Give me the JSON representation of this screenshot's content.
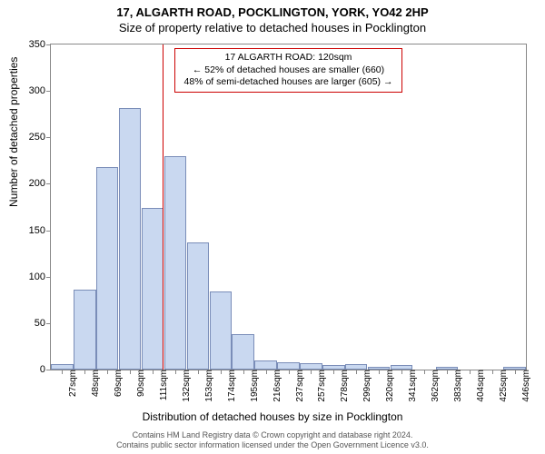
{
  "title": {
    "line1": "17, ALGARTH ROAD, POCKLINGTON, YORK, YO42 2HP",
    "line2": "Size of property relative to detached houses in Pocklington"
  },
  "chart": {
    "type": "histogram",
    "ylabel": "Number of detached properties",
    "xlabel": "Distribution of detached houses by size in Pocklington",
    "ylim": [
      0,
      350
    ],
    "ytick_step": 50,
    "bar_fill": "#c9d8f0",
    "bar_stroke": "#7a8db8",
    "border_color": "#888888",
    "marker_color": "#cc0000",
    "marker_x": 120,
    "x_start": 27,
    "x_step": 21,
    "x_unit": "sqm",
    "bars": [
      {
        "label": "27sqm",
        "value": 6
      },
      {
        "label": "48sqm",
        "value": 86
      },
      {
        "label": "69sqm",
        "value": 218
      },
      {
        "label": "90sqm",
        "value": 282
      },
      {
        "label": "111sqm",
        "value": 174
      },
      {
        "label": "132sqm",
        "value": 230
      },
      {
        "label": "153sqm",
        "value": 137
      },
      {
        "label": "174sqm",
        "value": 84
      },
      {
        "label": "195sqm",
        "value": 38
      },
      {
        "label": "216sqm",
        "value": 10
      },
      {
        "label": "237sqm",
        "value": 8
      },
      {
        "label": "257sqm",
        "value": 7
      },
      {
        "label": "278sqm",
        "value": 5
      },
      {
        "label": "299sqm",
        "value": 6
      },
      {
        "label": "320sqm",
        "value": 3
      },
      {
        "label": "341sqm",
        "value": 5
      },
      {
        "label": "362sqm",
        "value": 0
      },
      {
        "label": "383sqm",
        "value": 3
      },
      {
        "label": "404sqm",
        "value": 0
      },
      {
        "label": "425sqm",
        "value": 0
      },
      {
        "label": "446sqm",
        "value": 3
      }
    ],
    "callout": {
      "line1": "17 ALGARTH ROAD: 120sqm",
      "line2": "← 52% of detached houses are smaller (660)",
      "line3": "48% of semi-detached houses are larger (605) →"
    }
  },
  "footer": {
    "line1": "Contains HM Land Registry data © Crown copyright and database right 2024.",
    "line2": "Contains public sector information licensed under the Open Government Licence v3.0."
  }
}
